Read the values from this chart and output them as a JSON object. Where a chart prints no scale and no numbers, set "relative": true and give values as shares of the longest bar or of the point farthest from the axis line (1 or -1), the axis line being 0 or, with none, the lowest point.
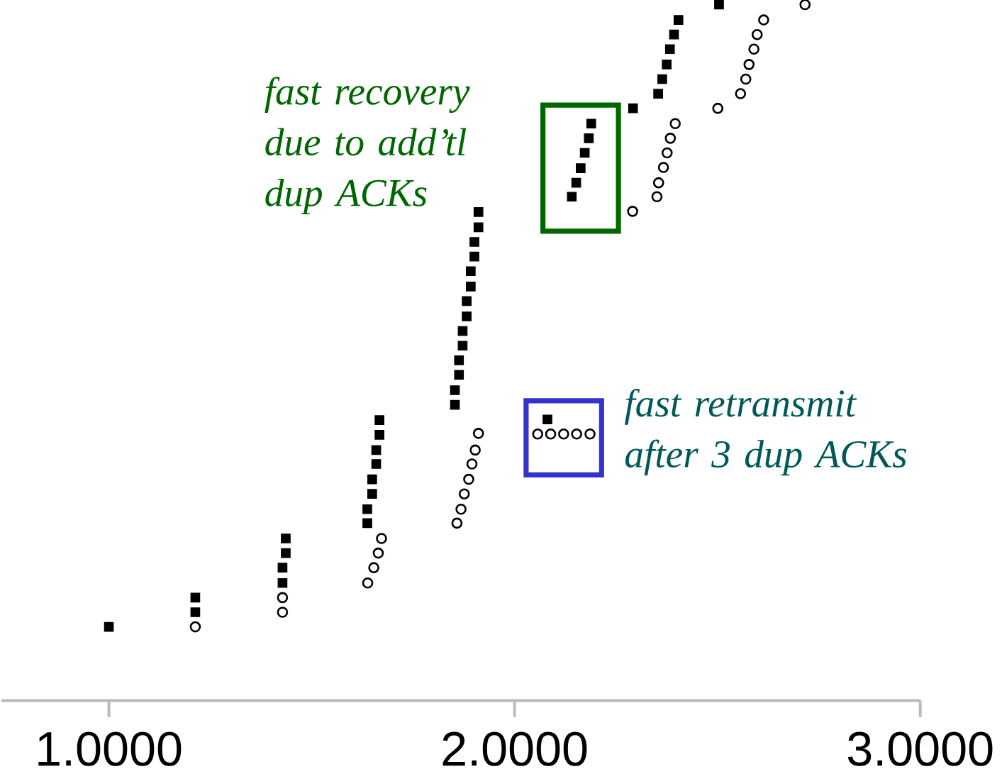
{
  "chart_data": {
    "type": "scatter",
    "relative": true,
    "xlim": [
      0.735,
      3.0
    ],
    "xticks": [
      {
        "value": 1,
        "label": "1.0000"
      },
      {
        "value": 2,
        "label": "2.0000"
      },
      {
        "value": 3,
        "label": "3.0000"
      }
    ],
    "series": [
      {
        "color": "#000000",
        "marker": "square",
        "x": [
          1.0,
          1.213,
          1.213,
          1.436,
          1.436,
          1.428,
          1.428,
          1.667,
          1.667,
          1.659,
          1.659,
          1.649,
          1.649,
          1.637,
          1.637,
          1.911,
          1.911,
          1.901,
          1.901,
          1.892,
          1.892,
          1.882,
          1.882,
          1.872,
          1.872,
          1.863,
          1.863,
          1.853,
          1.853,
          2.081,
          2.189,
          2.183,
          2.173,
          2.163,
          2.152,
          2.141,
          2.292,
          2.354,
          2.364,
          2.375,
          2.383,
          2.393,
          2.404,
          2.504
        ],
        "values": [
          0.106,
          0.148,
          0.127,
          0.233,
          0.212,
          0.191,
          0.169,
          0.403,
          0.382,
          0.36,
          0.34,
          0.318,
          0.297,
          0.275,
          0.255,
          0.702,
          0.68,
          0.659,
          0.638,
          0.617,
          0.595,
          0.574,
          0.552,
          0.531,
          0.51,
          0.489,
          0.468,
          0.446,
          0.425,
          0.404,
          0.829,
          0.808,
          0.787,
          0.765,
          0.744,
          0.724,
          0.851,
          0.872,
          0.893,
          0.914,
          0.936,
          0.957,
          0.978,
          1.0
        ]
      },
      {
        "color": "#000000",
        "marker": "circle",
        "x": [
          1.213,
          1.428,
          1.428,
          1.672,
          1.664,
          1.653,
          1.638,
          1.911,
          1.903,
          1.895,
          1.887,
          1.876,
          1.868,
          1.858,
          2.057,
          2.089,
          2.121,
          2.153,
          2.186,
          2.291,
          2.351,
          2.355,
          2.367,
          2.376,
          2.384,
          2.396,
          2.501,
          2.557,
          2.57,
          2.578,
          2.59,
          2.598,
          2.614,
          2.716
        ],
        "values": [
          0.106,
          0.148,
          0.127,
          0.233,
          0.212,
          0.191,
          0.169,
          0.384,
          0.36,
          0.34,
          0.318,
          0.297,
          0.275,
          0.255,
          0.383,
          0.383,
          0.383,
          0.383,
          0.383,
          0.703,
          0.724,
          0.744,
          0.766,
          0.787,
          0.808,
          0.829,
          0.851,
          0.872,
          0.893,
          0.914,
          0.936,
          0.957,
          0.978,
          1.0
        ]
      }
    ],
    "annotations": [
      {
        "text": "fast recovery due to add’tl dup ACKs",
        "x": 2.163,
        "y": 0.765
      },
      {
        "text": "fast retransmit after 3 dup ACKs",
        "x": 2.081,
        "y": 0.404
      }
    ]
  }
}
